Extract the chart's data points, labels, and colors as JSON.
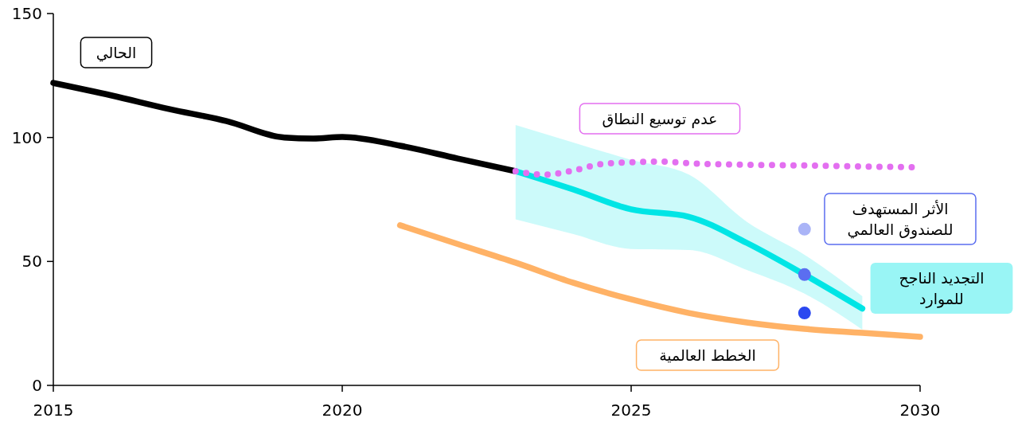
{
  "chart_data": {
    "type": "line",
    "xlim": [
      2015,
      2030
    ],
    "xticks": [
      2015,
      2020,
      2025,
      2030
    ],
    "ylim": [
      0,
      150
    ],
    "yticks": [
      0,
      50,
      100,
      150
    ],
    "grid": false,
    "series": [
      {
        "name": "الحالي",
        "color": "#000000",
        "x": [
          2015,
          2016,
          2017,
          2018,
          2019,
          2019.5,
          2020,
          2021,
          2022,
          2023
        ],
        "values": [
          122,
          117,
          111.5,
          106.6,
          100,
          99.6,
          100.2,
          96.7,
          91.5,
          86.4
        ]
      },
      {
        "name": "عدم توسيع النطاق",
        "color": "#e36ff0",
        "line_style": "dotted",
        "x": [
          2023,
          2023.5,
          2024,
          2024.5,
          2025,
          2025.5,
          2026,
          2027,
          2028,
          2029,
          2030
        ],
        "values": [
          86.4,
          85,
          86.7,
          89.3,
          90,
          90.3,
          89.6,
          89,
          88.7,
          88.3,
          88
        ]
      },
      {
        "name": "التجديد الناجح للموارد",
        "color": "#00e5e5",
        "x": [
          2023,
          2024,
          2025,
          2026,
          2027,
          2028,
          2029
        ],
        "values": [
          86.4,
          79,
          71,
          68,
          57.5,
          44.7,
          31
        ],
        "lower": [
          67,
          61,
          55,
          54.6,
          46.6,
          37,
          22.5
        ],
        "upper": [
          105,
          98,
          91,
          85,
          66,
          52.7,
          36
        ]
      },
      {
        "name": "الخطط العالمية",
        "color": "#ffb266",
        "x": [
          2021,
          2022,
          2023,
          2024,
          2025,
          2026,
          2027,
          2028,
          2029,
          2030
        ],
        "values": [
          64.6,
          57,
          49.5,
          41.4,
          34.7,
          29.2,
          25.4,
          22.8,
          21.2,
          19.6
        ]
      },
      {
        "name": "الأثر المستهدف للصندوق العالمي",
        "type": "scatter",
        "color": "#5b6ef0",
        "colors": [
          "#aab4f7",
          "#5b6ef0",
          "#2b48f0"
        ],
        "x": [
          2028,
          2028,
          2028
        ],
        "values": [
          63,
          44.7,
          29.2
        ]
      }
    ]
  }
}
